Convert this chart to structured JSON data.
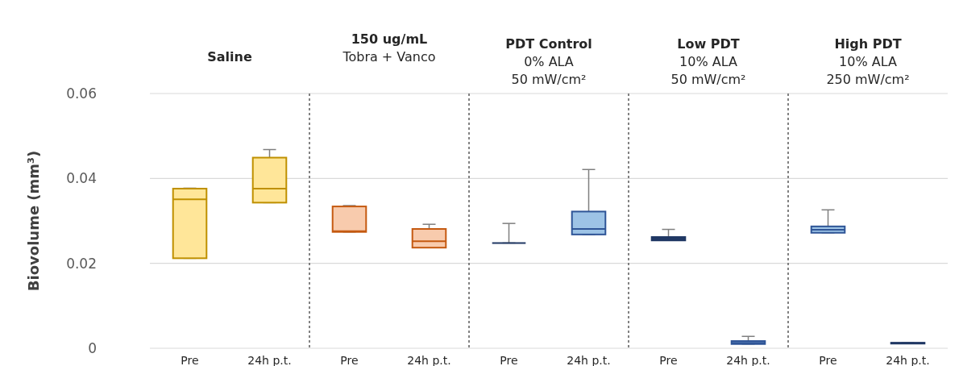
{
  "chart_data": {
    "type": "box",
    "ylabel": "Biovolume (mm³)",
    "categories": [
      "Pre",
      "24h p.t.",
      "Pre",
      "24h p.t.",
      "Pre",
      "24h p.t.",
      "Pre",
      "24h p.t.",
      "Pre",
      "24h p.t."
    ],
    "boxes": [
      {
        "low": 0.0212,
        "q1": 0.0212,
        "median": 0.0351,
        "q3": 0.0376,
        "high": 0.0377
      },
      {
        "low": 0.0343,
        "q1": 0.0343,
        "median": 0.0376,
        "q3": 0.0449,
        "high": 0.0468
      },
      {
        "low": 0.0274,
        "q1": 0.0274,
        "median": 0.0276,
        "q3": 0.0334,
        "high": 0.0336
      },
      {
        "low": 0.0237,
        "q1": 0.0237,
        "median": 0.0252,
        "q3": 0.0281,
        "high": 0.0292
      },
      {
        "low": 0.0248,
        "q1": 0.0248,
        "median": 0.0248,
        "q3": 0.0248,
        "high": 0.0294
      },
      {
        "low": 0.0268,
        "q1": 0.0268,
        "median": 0.0281,
        "q3": 0.0322,
        "high": 0.0421
      },
      {
        "low": 0.0254,
        "q1": 0.0254,
        "median": 0.0258,
        "q3": 0.0262,
        "high": 0.028
      },
      {
        "low": 0.001,
        "q1": 0.001,
        "median": 0.0013,
        "q3": 0.0017,
        "high": 0.0028
      },
      {
        "low": 0.0272,
        "q1": 0.0272,
        "median": 0.0279,
        "q3": 0.0287,
        "high": 0.0326
      },
      {
        "low": 0.0011,
        "q1": 0.0011,
        "median": 0.0012,
        "q3": 0.0013,
        "high": 0.0013
      }
    ],
    "colors": [
      "#ffe699",
      "#ffe699",
      "#f8cbad",
      "#f8cbad",
      "#203864",
      "#9dc3e6",
      "#203864",
      "#9dc3e6",
      "#9dc3e6",
      "#203864"
    ],
    "ylim": [
      0,
      0.06
    ],
    "yticks": [
      0,
      0.02,
      0.04,
      0.06
    ],
    "grid": "y",
    "annotations": [
      "Saline",
      "150 ug/mL\nTobra + Vanco",
      "PDT Control\n0% ALA\n50 mW/cm²",
      "Low PDT\n10% ALA\n50 mW/cm²",
      "High PDT\n10% ALA\n250 mW/cm²"
    ]
  }
}
